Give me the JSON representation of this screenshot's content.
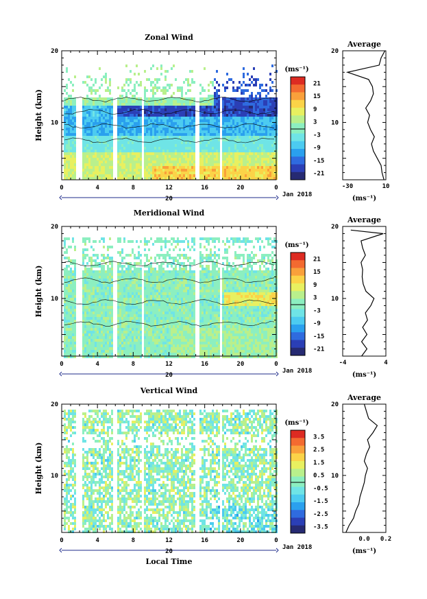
{
  "figure": {
    "xlabel_bottom": "Local Time",
    "date_label": "Jan 2018",
    "day_label": "20",
    "xticks": [
      "0",
      "4",
      "8",
      "12",
      "16",
      "20",
      "0"
    ],
    "yticks": [
      "20",
      "10"
    ]
  },
  "chart_data": [
    {
      "type": "heatmap",
      "title": "Zonal Wind",
      "ylabel": "Height (km)",
      "xlabel": "Local Time",
      "xlim": [
        0,
        24
      ],
      "ylim": [
        2,
        20
      ],
      "colorbar": {
        "label": "(ms⁻¹)",
        "ticks": [
          "21",
          "15",
          "9",
          "3",
          "-3",
          "-9",
          "-15",
          "-21"
        ],
        "range": [
          -24,
          24
        ]
      },
      "data_gaps_hours": [
        [
          1.6,
          2.1
        ],
        [
          5.7,
          6.0
        ],
        [
          8.9,
          9.2
        ],
        [
          14.9,
          15.3
        ],
        [
          17.6,
          17.9
        ]
      ],
      "average_profile": {
        "title": "Average",
        "xlabel": "(ms⁻¹)",
        "xticks": [
          "-30",
          "10"
        ],
        "xlim": [
          -35,
          10
        ],
        "heights": [
          2,
          3,
          4,
          5,
          6,
          7,
          8,
          9,
          10,
          11,
          12,
          13,
          14,
          15,
          16,
          17,
          18,
          19,
          20
        ],
        "values": [
          8,
          6,
          5,
          1,
          -3,
          -5,
          -2,
          -6,
          -9,
          -7,
          -11,
          -6,
          -3,
          -4,
          -8,
          -30,
          3,
          5,
          9
        ]
      }
    },
    {
      "type": "heatmap",
      "title": "Meridional Wind",
      "ylabel": "Height (km)",
      "xlabel": "Local Time",
      "xlim": [
        0,
        24
      ],
      "ylim": [
        2,
        20
      ],
      "colorbar": {
        "label": "(ms⁻¹)",
        "ticks": [
          "21",
          "15",
          "9",
          "3",
          "-3",
          "-9",
          "-15",
          "-21"
        ],
        "range": [
          -24,
          24
        ]
      },
      "data_gaps_hours": [
        [
          1.6,
          2.1
        ],
        [
          5.7,
          6.0
        ],
        [
          8.9,
          9.2
        ],
        [
          14.9,
          15.3
        ],
        [
          17.6,
          17.9
        ]
      ],
      "average_profile": {
        "title": "Average",
        "xlabel": "(ms⁻¹)",
        "xticks": [
          "-4",
          "4"
        ],
        "xlim": [
          -4,
          4
        ],
        "heights": [
          2,
          3,
          4,
          5,
          6,
          7,
          8,
          9,
          10,
          11,
          12,
          13,
          14,
          15,
          16,
          17,
          18,
          19,
          19.5
        ],
        "values": [
          -0.5,
          0.5,
          -0.5,
          0.5,
          -0.3,
          0.6,
          0.2,
          1.2,
          1.8,
          0.3,
          -0.2,
          -0.4,
          -0.3,
          -0.6,
          0.2,
          -0.3,
          -0.6,
          3.5,
          -2.5
        ]
      }
    },
    {
      "type": "heatmap",
      "title": "Vertical Wind",
      "ylabel": "Height (km)",
      "xlabel": "Local Time",
      "xlim": [
        0,
        24
      ],
      "ylim": [
        2,
        20
      ],
      "colorbar": {
        "label": "(ms⁻¹)",
        "ticks": [
          "3.5",
          "2.5",
          "1.5",
          "0.5",
          "-0.5",
          "-1.5",
          "-2.5",
          "-3.5"
        ],
        "range": [
          -4,
          4
        ]
      },
      "data_gaps_hours": [
        [
          1.6,
          2.1
        ],
        [
          5.7,
          6.0
        ],
        [
          8.9,
          9.2
        ],
        [
          14.9,
          15.3
        ],
        [
          17.6,
          17.9
        ]
      ],
      "average_profile": {
        "title": "Average",
        "xlabel": "(ms⁻¹)",
        "xticks": [
          "0.0",
          "0.2"
        ],
        "xlim": [
          -0.2,
          0.2
        ],
        "heights": [
          2,
          3,
          4,
          5,
          6,
          7,
          8,
          9,
          10,
          11,
          12,
          13,
          14,
          15,
          16,
          17,
          18,
          19,
          20
        ],
        "values": [
          -0.17,
          -0.14,
          -0.1,
          -0.08,
          -0.05,
          -0.04,
          -0.02,
          0.0,
          0.01,
          0.03,
          0.0,
          0.02,
          0.05,
          0.03,
          0.08,
          0.12,
          0.04,
          0.02,
          0.0
        ]
      }
    }
  ]
}
